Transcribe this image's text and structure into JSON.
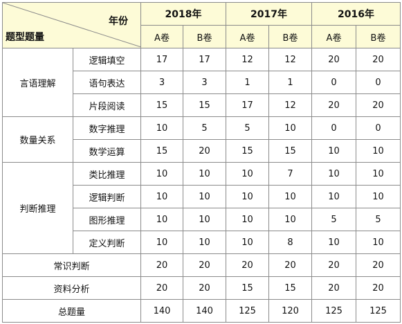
{
  "header": {
    "corner_left": "题型题量",
    "corner_right": "年份",
    "years": [
      "2018年",
      "2017年",
      "2016年"
    ],
    "papers": [
      "A卷",
      "B卷",
      "A卷",
      "B卷",
      "A卷",
      "B卷"
    ]
  },
  "groups": [
    {
      "name": "言语理解",
      "rows": [
        {
          "sub": "逻辑填空",
          "values": [
            "17",
            "17",
            "12",
            "12",
            "20",
            "20"
          ]
        },
        {
          "sub": "语句表达",
          "values": [
            "3",
            "3",
            "1",
            "1",
            "0",
            "0"
          ]
        },
        {
          "sub": "片段阅读",
          "values": [
            "15",
            "15",
            "17",
            "12",
            "20",
            "20"
          ]
        }
      ]
    },
    {
      "name": "数量关系",
      "rows": [
        {
          "sub": "数字推理",
          "values": [
            "10",
            "5",
            "5",
            "10",
            "0",
            "0"
          ]
        },
        {
          "sub": "数学运算",
          "values": [
            "15",
            "20",
            "15",
            "15",
            "10",
            "10"
          ]
        }
      ]
    },
    {
      "name": "判断推理",
      "rows": [
        {
          "sub": "类比推理",
          "values": [
            "10",
            "10",
            "10",
            "7",
            "10",
            "10"
          ]
        },
        {
          "sub": "逻辑判断",
          "values": [
            "10",
            "10",
            "10",
            "10",
            "10",
            "10"
          ]
        },
        {
          "sub": "图形推理",
          "values": [
            "10",
            "10",
            "10",
            "10",
            "5",
            "5"
          ]
        },
        {
          "sub": "定义判断",
          "values": [
            "10",
            "10",
            "10",
            "8",
            "10",
            "10"
          ]
        }
      ]
    }
  ],
  "single_rows": [
    {
      "name": "常识判断",
      "values": [
        "20",
        "20",
        "20",
        "20",
        "20",
        "20"
      ]
    },
    {
      "name": "资料分析",
      "values": [
        "20",
        "20",
        "15",
        "15",
        "20",
        "20"
      ]
    },
    {
      "name": "总题量",
      "values": [
        "140",
        "140",
        "125",
        "120",
        "125",
        "125"
      ]
    }
  ]
}
